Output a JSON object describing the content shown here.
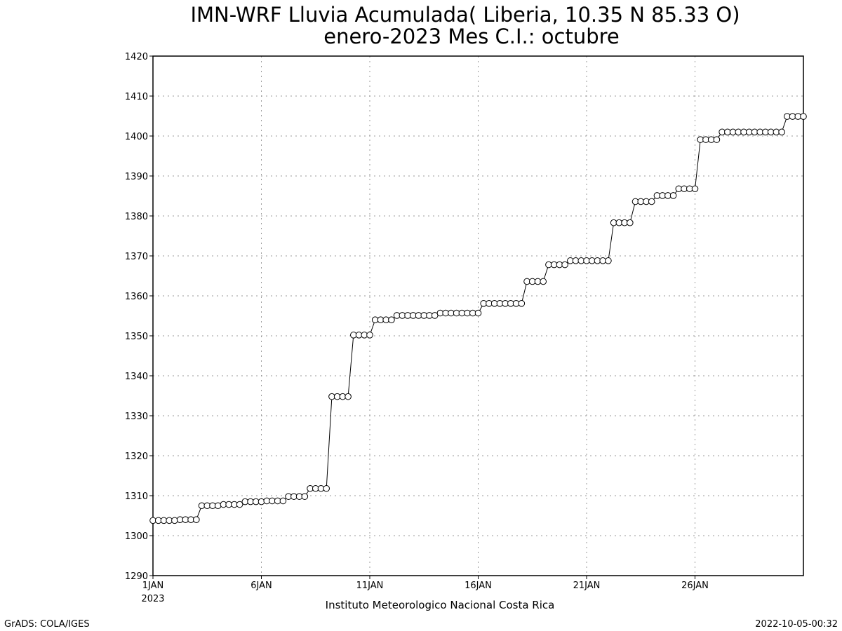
{
  "chart_data": {
    "type": "line",
    "title": "IMN-WRF  Lluvia Acumulada( Liberia, 10.35  N 85.33  O)",
    "subtitle": "enero-2023 Mes C.I.: octubre",
    "x_start": "1JAN2023",
    "x_end": "31JAN2023",
    "x_step_hours": 6,
    "x_tick_labels": [
      "1JAN",
      "6JAN",
      "11JAN",
      "16JAN",
      "21JAN",
      "26JAN"
    ],
    "x_tick_days": [
      1,
      6,
      11,
      16,
      21,
      26
    ],
    "x_year_label": "2023",
    "ylim": [
      1290,
      1420
    ],
    "y_ticks": [
      1290,
      1300,
      1310,
      1320,
      1330,
      1340,
      1350,
      1360,
      1370,
      1380,
      1390,
      1400,
      1410,
      1420
    ],
    "grid": true,
    "marker": "open-circle",
    "series": [
      {
        "values": [
          1303.8,
          1303.8,
          1303.8,
          1303.8,
          1303.8,
          1304.0,
          1304.0,
          1304.0,
          1304.0,
          1307.5,
          1307.5,
          1307.5,
          1307.5,
          1307.8,
          1307.8,
          1307.8,
          1307.8,
          1308.5,
          1308.5,
          1308.5,
          1308.5,
          1308.7,
          1308.7,
          1308.7,
          1308.7,
          1309.8,
          1309.8,
          1309.8,
          1309.8,
          1311.8,
          1311.8,
          1311.8,
          1311.8,
          1334.8,
          1334.8,
          1334.8,
          1334.8,
          1350.2,
          1350.2,
          1350.2,
          1350.2,
          1354.0,
          1354.0,
          1354.0,
          1354.0,
          1355.1,
          1355.1,
          1355.1,
          1355.1,
          1355.1,
          1355.1,
          1355.1,
          1355.1,
          1355.7,
          1355.7,
          1355.7,
          1355.7,
          1355.7,
          1355.7,
          1355.7,
          1355.7,
          1358.1,
          1358.1,
          1358.1,
          1358.1,
          1358.1,
          1358.1,
          1358.1,
          1358.1,
          1363.6,
          1363.6,
          1363.6,
          1363.6,
          1367.8,
          1367.8,
          1367.8,
          1367.8,
          1368.8,
          1368.8,
          1368.8,
          1368.8,
          1368.8,
          1368.8,
          1368.8,
          1368.8,
          1378.3,
          1378.3,
          1378.3,
          1378.3,
          1383.6,
          1383.6,
          1383.6,
          1383.6,
          1385.1,
          1385.1,
          1385.1,
          1385.1,
          1386.8,
          1386.8,
          1386.8,
          1386.8,
          1399.1,
          1399.1,
          1399.1,
          1399.1,
          1401.0,
          1401.0,
          1401.0,
          1401.0,
          1401.0,
          1401.0,
          1401.0,
          1401.0,
          1401.0,
          1401.0,
          1401.0,
          1401.0,
          1404.9,
          1404.9,
          1404.9,
          1404.9
        ]
      }
    ]
  },
  "footer": {
    "institution": "Instituto Meteorologico Nacional Costa Rica",
    "software": "GrADS: COLA/IGES",
    "timestamp": "2022-10-05-00:32"
  }
}
